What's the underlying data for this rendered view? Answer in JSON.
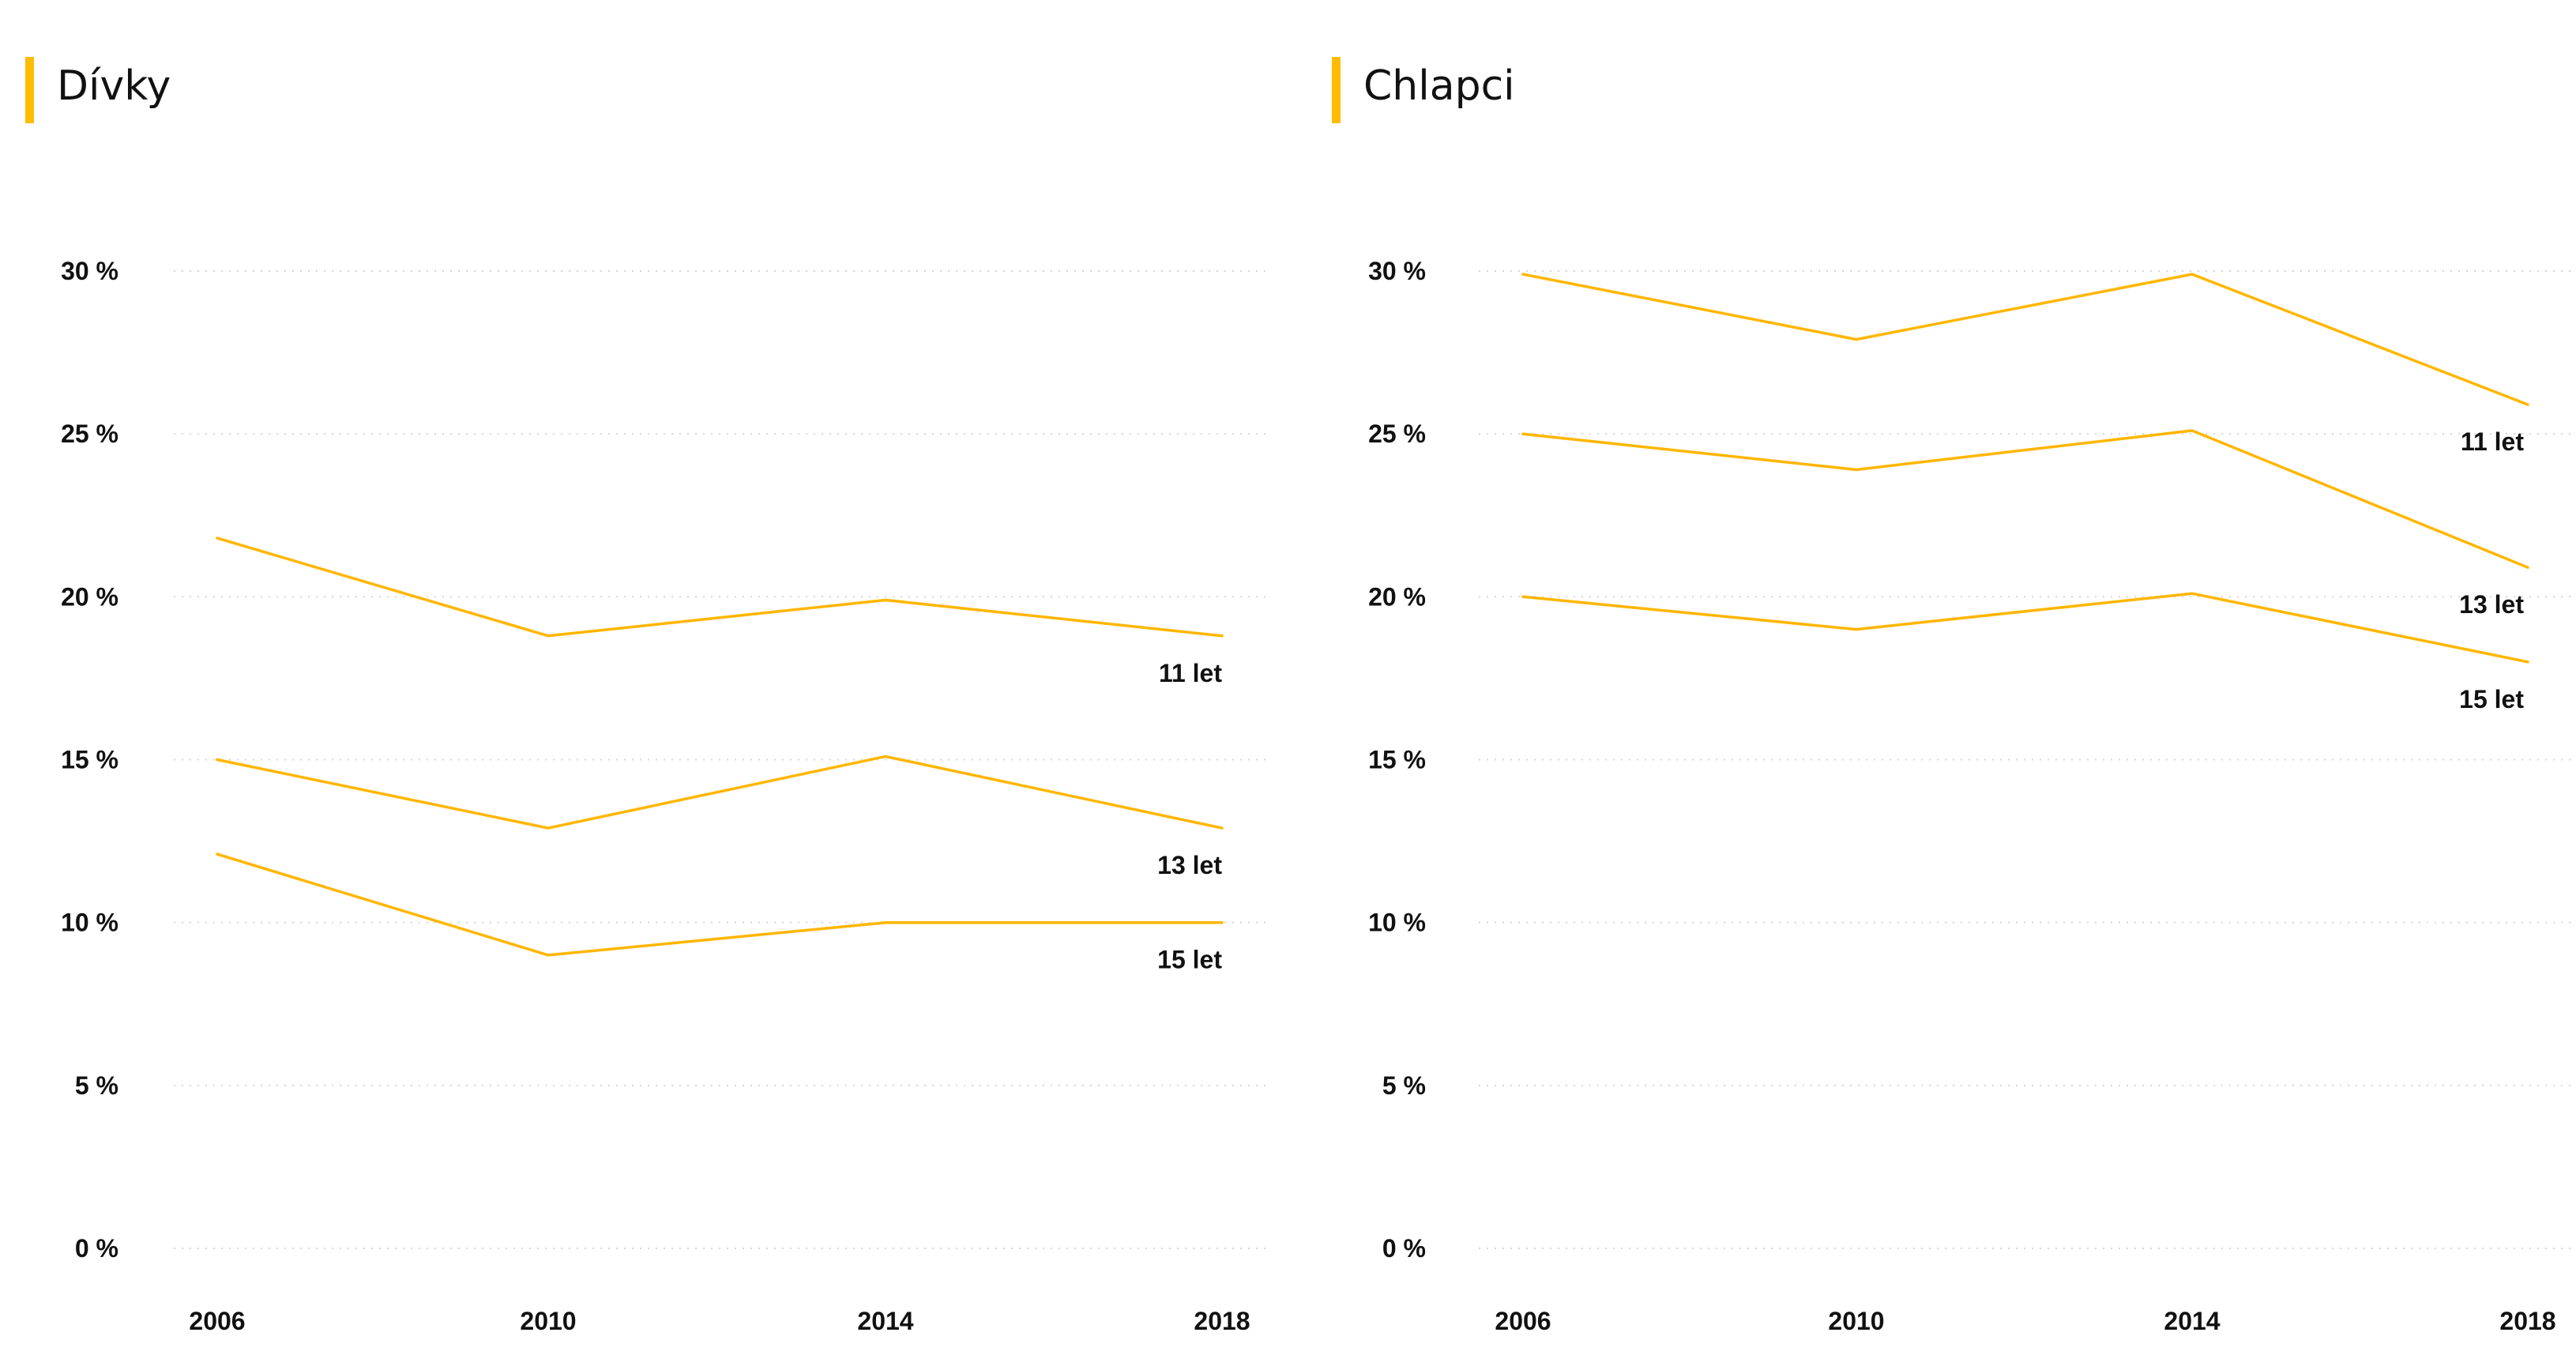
{
  "colors": {
    "accent": "#FFBC00",
    "line": "#FFB600",
    "grid": "#D6D6D6",
    "text": "#111111"
  },
  "chart_data": [
    {
      "type": "line",
      "title": "Dívky",
      "x": [
        "2006",
        "2010",
        "2014",
        "2018"
      ],
      "ylim": [
        0,
        30
      ],
      "yticks": [
        0,
        5,
        10,
        15,
        20,
        25,
        30
      ],
      "ytick_labels": [
        "0 %",
        "5 %",
        "10 %",
        "15 %",
        "20 %",
        "25 %",
        "30 %"
      ],
      "grid": "horizontal-dotted",
      "series": [
        {
          "name": "11 let",
          "values": [
            21.8,
            18.8,
            19.9,
            18.8
          ]
        },
        {
          "name": "13 let",
          "values": [
            15.0,
            12.9,
            15.1,
            12.9
          ]
        },
        {
          "name": "15 let",
          "values": [
            12.1,
            9.0,
            10.0,
            10.0
          ]
        }
      ]
    },
    {
      "type": "line",
      "title": "Chlapci",
      "x": [
        "2006",
        "2010",
        "2014",
        "2018"
      ],
      "ylim": [
        0,
        30
      ],
      "yticks": [
        0,
        5,
        10,
        15,
        20,
        25,
        30
      ],
      "ytick_labels": [
        "0 %",
        "5 %",
        "10 %",
        "15 %",
        "20 %",
        "25 %",
        "30 %"
      ],
      "grid": "horizontal-dotted",
      "series": [
        {
          "name": "11 let",
          "values": [
            29.9,
            27.9,
            29.9,
            25.9
          ]
        },
        {
          "name": "13 let",
          "values": [
            25.0,
            23.9,
            25.1,
            20.9
          ]
        },
        {
          "name": "15 let",
          "values": [
            20.0,
            19.0,
            20.1,
            18.0
          ]
        }
      ]
    }
  ]
}
